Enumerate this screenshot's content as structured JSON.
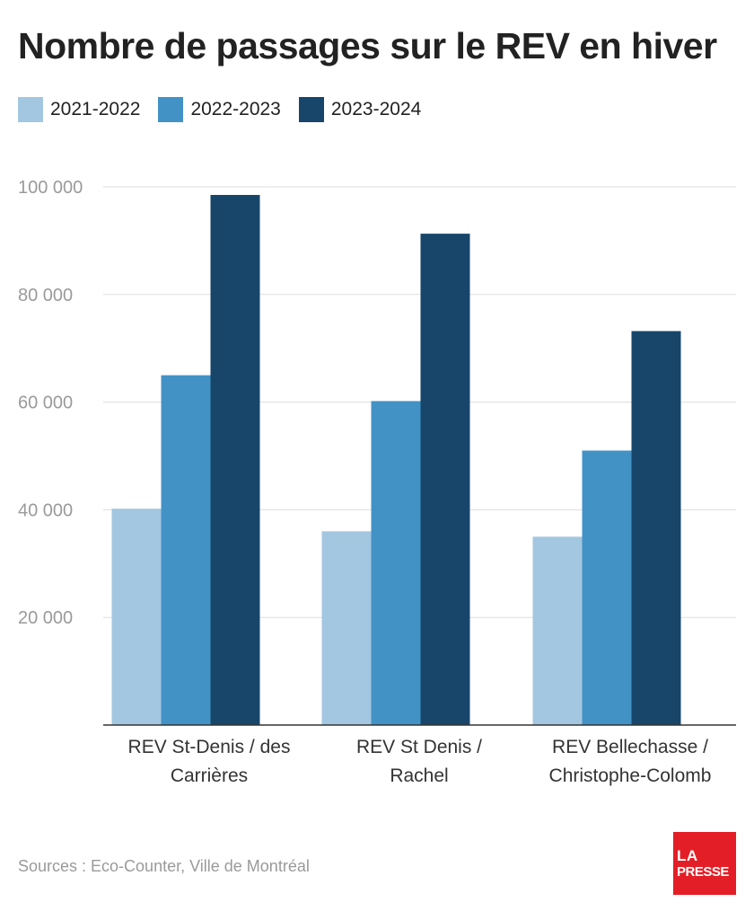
{
  "header": {
    "title": "Nombre de passages sur le REV en hiver"
  },
  "footer": {
    "source": "Sources : Eco-Counter, Ville de Montréal"
  },
  "logo": {
    "line1": "LA",
    "line2": "PRESSE"
  },
  "chart_data": {
    "type": "bar",
    "title": "Nombre de passages sur le REV en hiver",
    "xlabel": "",
    "ylabel": "",
    "ylim": [
      0,
      100000
    ],
    "yticks": [
      20000,
      40000,
      60000,
      80000,
      100000
    ],
    "ytick_labels": [
      "20 000",
      "40 000",
      "60 000",
      "80 000",
      "100 000"
    ],
    "grid": true,
    "legend_position": "top-left",
    "categories": [
      [
        "REV St-Denis / des",
        "Carrières"
      ],
      [
        "REV St Denis /",
        "Rachel"
      ],
      [
        "REV Bellechasse /",
        "Christophe-Colomb"
      ]
    ],
    "series": [
      {
        "name": "2021-2022",
        "color": "#a3c7e0",
        "values": [
          40200,
          36000,
          35000
        ]
      },
      {
        "name": "2022-2023",
        "color": "#4292c6",
        "values": [
          65000,
          60200,
          51000
        ]
      },
      {
        "name": "2023-2024",
        "color": "#17466a",
        "values": [
          98500,
          91300,
          73200
        ]
      }
    ]
  }
}
